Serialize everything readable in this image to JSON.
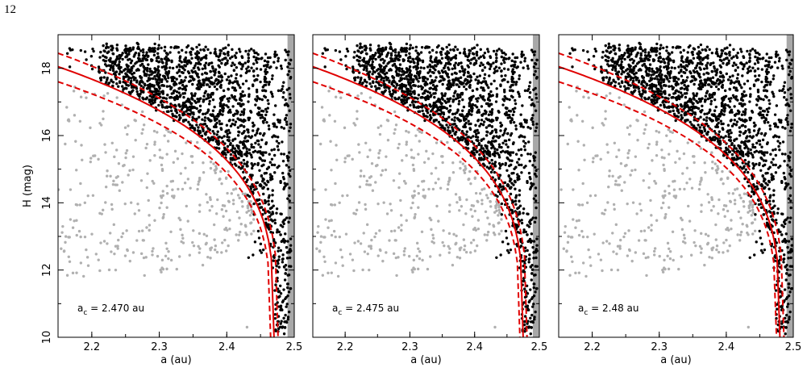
{
  "page": {
    "page_number": "12"
  },
  "colors": {
    "dark_points": "#000000",
    "grey_points": "#b0b0b0",
    "curves": "#e00000",
    "boundary_band": "#a8a8a8"
  },
  "chart_data": [
    {
      "type": "scatter",
      "xlabel": "a (au)",
      "ylabel": "H (mag)",
      "xlim": [
        2.15,
        2.5
      ],
      "ylim": [
        10,
        19
      ],
      "xticks": [
        "2.2",
        "2.3",
        "2.4",
        "2.5"
      ],
      "yticks": [
        "10",
        "12",
        "14",
        "16",
        "18"
      ],
      "annotation": {
        "symbol": "a",
        "subscript": "c",
        "value": " = 2.470 au"
      },
      "a_c": 2.47,
      "curves": [
        {
          "style": "solid",
          "points": [
            [
              2.15,
              18.05
            ],
            [
              2.25,
              17.5
            ],
            [
              2.35,
              16.3
            ],
            [
              2.4,
              15.2
            ],
            [
              2.44,
              13.6
            ],
            [
              2.455,
              12.6
            ],
            [
              2.465,
              11.4
            ],
            [
              2.47,
              10.0
            ]
          ]
        },
        {
          "style": "dashed",
          "points": [
            [
              2.15,
              18.45
            ],
            [
              2.25,
              17.9
            ],
            [
              2.35,
              16.7
            ],
            [
              2.4,
              15.55
            ],
            [
              2.445,
              13.9
            ],
            [
              2.46,
              12.8
            ],
            [
              2.47,
              11.5
            ],
            [
              2.476,
              10.0
            ]
          ]
        },
        {
          "style": "dashed",
          "points": [
            [
              2.15,
              17.6
            ],
            [
              2.25,
              17.05
            ],
            [
              2.35,
              15.9
            ],
            [
              2.4,
              14.85
            ],
            [
              2.44,
              13.3
            ],
            [
              2.452,
              12.3
            ],
            [
              2.461,
              11.2
            ],
            [
              2.465,
              10.0
            ]
          ]
        }
      ],
      "boundary_band": [
        2.49,
        2.5
      ]
    },
    {
      "type": "scatter",
      "xlabel": "a (au)",
      "ylabel": "",
      "xlim": [
        2.15,
        2.5
      ],
      "ylim": [
        10,
        19
      ],
      "xticks": [
        "2.2",
        "2.3",
        "2.4",
        "2.5"
      ],
      "yticks": [],
      "annotation": {
        "symbol": "a",
        "subscript": "c",
        "value": " = 2.475 au"
      },
      "a_c": 2.475,
      "curves": [
        {
          "style": "solid",
          "points": [
            [
              2.15,
              18.05
            ],
            [
              2.25,
              17.5
            ],
            [
              2.35,
              16.3
            ],
            [
              2.4,
              15.25
            ],
            [
              2.445,
              13.6
            ],
            [
              2.46,
              12.6
            ],
            [
              2.47,
              11.4
            ],
            [
              2.475,
              10.0
            ]
          ]
        },
        {
          "style": "dashed",
          "points": [
            [
              2.15,
              18.45
            ],
            [
              2.25,
              17.9
            ],
            [
              2.35,
              16.7
            ],
            [
              2.4,
              15.6
            ],
            [
              2.45,
              13.9
            ],
            [
              2.465,
              12.8
            ],
            [
              2.475,
              11.5
            ],
            [
              2.481,
              10.0
            ]
          ]
        },
        {
          "style": "dashed",
          "points": [
            [
              2.15,
              17.6
            ],
            [
              2.25,
              17.05
            ],
            [
              2.35,
              15.9
            ],
            [
              2.4,
              14.9
            ],
            [
              2.445,
              13.3
            ],
            [
              2.457,
              12.3
            ],
            [
              2.466,
              11.2
            ],
            [
              2.47,
              10.0
            ]
          ]
        }
      ],
      "boundary_band": [
        2.49,
        2.5
      ]
    },
    {
      "type": "scatter",
      "xlabel": "a (au)",
      "ylabel": "",
      "xlim": [
        2.15,
        2.5
      ],
      "ylim": [
        10,
        19
      ],
      "xticks": [
        "2.2",
        "2.3",
        "2.4",
        "2.5"
      ],
      "yticks": [],
      "annotation": {
        "symbol": "a",
        "subscript": "c",
        "value": " = 2.48 au"
      },
      "a_c": 2.48,
      "curves": [
        {
          "style": "solid",
          "points": [
            [
              2.15,
              18.05
            ],
            [
              2.25,
              17.5
            ],
            [
              2.35,
              16.3
            ],
            [
              2.4,
              15.3
            ],
            [
              2.45,
              13.6
            ],
            [
              2.465,
              12.6
            ],
            [
              2.475,
              11.4
            ],
            [
              2.48,
              10.0
            ]
          ]
        },
        {
          "style": "dashed",
          "points": [
            [
              2.15,
              18.45
            ],
            [
              2.25,
              17.9
            ],
            [
              2.35,
              16.7
            ],
            [
              2.4,
              15.65
            ],
            [
              2.455,
              13.9
            ],
            [
              2.47,
              12.8
            ],
            [
              2.48,
              11.5
            ],
            [
              2.486,
              10.0
            ]
          ]
        },
        {
          "style": "dashed",
          "points": [
            [
              2.15,
              17.6
            ],
            [
              2.25,
              17.05
            ],
            [
              2.35,
              15.9
            ],
            [
              2.4,
              14.95
            ],
            [
              2.45,
              13.3
            ],
            [
              2.462,
              12.3
            ],
            [
              2.471,
              11.2
            ],
            [
              2.475,
              10.0
            ]
          ]
        }
      ],
      "boundary_band": [
        2.49,
        2.5
      ]
    }
  ]
}
